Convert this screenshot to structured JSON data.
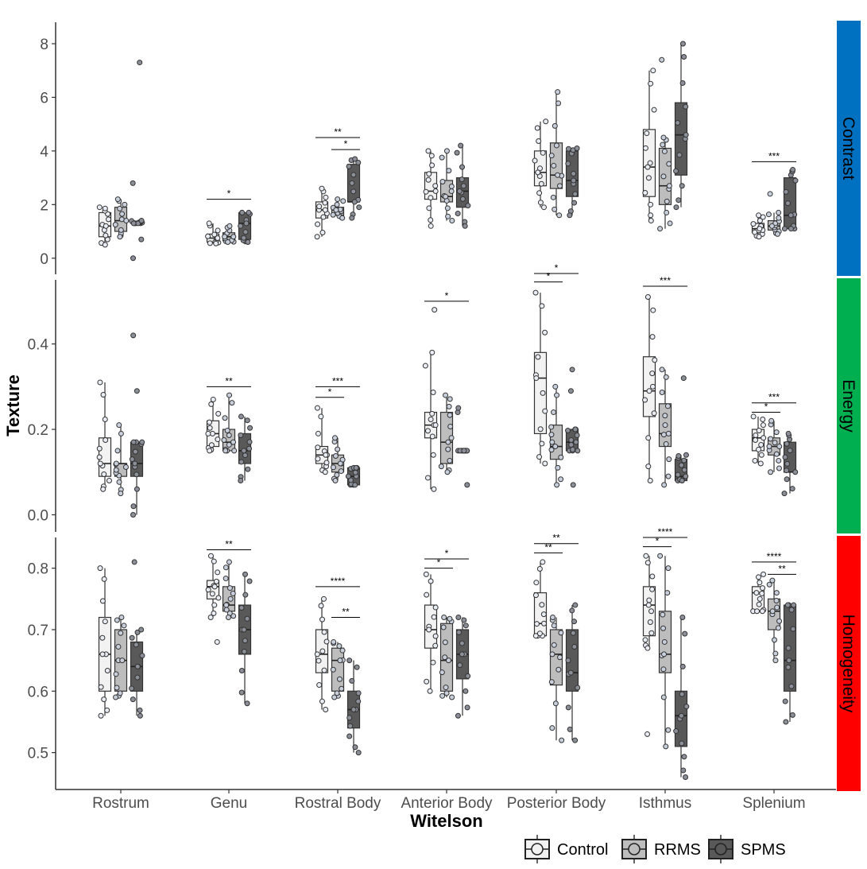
{
  "chart_data": {
    "type": "boxplot",
    "xlabel": "Witelson",
    "ylabel": "Texture",
    "categories": [
      "Rostrum",
      "Genu",
      "Rostral Body",
      "Anterior Body",
      "Posterior Body",
      "Isthmus",
      "Splenium"
    ],
    "legend": {
      "placement": "bottom-right",
      "items": [
        {
          "label": "Control",
          "color": "#f2f2f2"
        },
        {
          "label": "RRMS",
          "color": "#bdbdbd"
        },
        {
          "label": "SPMS",
          "color": "#595959"
        }
      ]
    },
    "panels": [
      {
        "name": "Contrast",
        "strip_color": "#0070c0",
        "ylim": [
          -0.6,
          8.8
        ],
        "ticks": [
          0,
          2,
          4,
          6,
          8
        ],
        "tick_labels": [
          "0",
          "2",
          "4",
          "6",
          "8"
        ],
        "boxes": [
          [
            [
              0.5,
              0.8,
              1.2,
              1.7,
              1.9
            ],
            [
              0.8,
              1.0,
              1.4,
              1.9,
              2.2
            ],
            [
              1.3,
              1.3,
              1.3,
              1.35,
              1.4
            ]
          ],
          [
            [
              0.55,
              0.6,
              0.75,
              0.9,
              1.3
            ],
            [
              0.6,
              0.65,
              0.8,
              0.95,
              1.2
            ],
            [
              0.6,
              0.7,
              1.3,
              1.7,
              1.7
            ]
          ],
          [
            [
              0.8,
              1.5,
              1.8,
              2.1,
              2.6
            ],
            [
              1.5,
              1.6,
              1.8,
              1.9,
              2.2
            ],
            [
              1.5,
              2.1,
              2.1,
              3.5,
              3.7
            ]
          ],
          [
            [
              1.2,
              2.2,
              2.5,
              3.2,
              4.0
            ],
            [
              1.4,
              2.1,
              2.3,
              2.9,
              4.0
            ],
            [
              1.2,
              1.9,
              2.5,
              3.0,
              4.2
            ]
          ],
          [
            [
              1.9,
              2.7,
              3.2,
              4.0,
              5.1
            ],
            [
              1.6,
              2.6,
              3.1,
              4.3,
              6.2
            ],
            [
              1.6,
              2.3,
              2.9,
              4.0,
              4.1
            ]
          ],
          [
            [
              1.4,
              2.3,
              3.4,
              4.8,
              7.0
            ],
            [
              1.1,
              2.0,
              2.7,
              4.1,
              4.5
            ],
            [
              1.9,
              3.1,
              4.6,
              5.8,
              8.0
            ]
          ],
          [
            [
              0.8,
              0.95,
              1.1,
              1.3,
              1.6
            ],
            [
              0.9,
              1.05,
              1.2,
              1.4,
              1.7
            ],
            [
              1.1,
              1.1,
              1.6,
              3.0,
              3.3
            ]
          ]
        ],
        "outliers": [
          [
            [],
            [],
            [
              7.3,
              2.8,
              0.7,
              0.0
            ]
          ],
          [
            [],
            [],
            []
          ],
          [
            [],
            [],
            []
          ],
          [
            [],
            [],
            []
          ],
          [
            [],
            [],
            []
          ],
          [
            [],
            [
              7.4
            ],
            []
          ],
          [
            [],
            [
              2.4
            ],
            []
          ]
        ],
        "significance": [
          {
            "category": "Genu",
            "from": "Control",
            "to": "SPMS",
            "label": "*",
            "y": 2.2
          },
          {
            "category": "Rostral Body",
            "from": "Control",
            "to": "SPMS",
            "label": "**",
            "y": 4.5
          },
          {
            "category": "Rostral Body",
            "from": "RRMS",
            "to": "SPMS",
            "label": "*",
            "y": 4.05
          },
          {
            "category": "Splenium",
            "from": "Control",
            "to": "SPMS",
            "label": "***",
            "y": 3.6
          }
        ]
      },
      {
        "name": "Energy",
        "strip_color": "#00b050",
        "ylim": [
          -0.04,
          0.55
        ],
        "ticks": [
          0.0,
          0.2,
          0.4
        ],
        "tick_labels": [
          "0.0",
          "0.2",
          "0.4"
        ],
        "boxes": [
          [
            [
              0.06,
              0.09,
              0.12,
              0.18,
              0.31
            ],
            [
              0.05,
              0.09,
              0.12,
              0.12,
              0.21
            ],
            [
              0.0,
              0.09,
              0.12,
              0.17,
              0.17
            ]
          ],
          [
            [
              0.15,
              0.16,
              0.19,
              0.22,
              0.27
            ],
            [
              0.15,
              0.15,
              0.17,
              0.2,
              0.28
            ],
            [
              0.08,
              0.12,
              0.15,
              0.19,
              0.23
            ]
          ],
          [
            [
              0.1,
              0.12,
              0.14,
              0.16,
              0.25
            ],
            [
              0.08,
              0.1,
              0.12,
              0.14,
              0.18
            ],
            [
              0.07,
              0.07,
              0.09,
              0.11,
              0.11
            ]
          ],
          [
            [
              0.06,
              0.18,
              0.21,
              0.24,
              0.38
            ],
            [
              0.1,
              0.12,
              0.17,
              0.24,
              0.28
            ],
            [
              0.15,
              0.15,
              0.15,
              0.15,
              0.15
            ]
          ],
          [
            [
              0.12,
              0.19,
              0.32,
              0.38,
              0.52
            ],
            [
              0.07,
              0.13,
              0.16,
              0.21,
              0.3
            ],
            [
              0.15,
              0.15,
              0.17,
              0.2,
              0.2
            ]
          ],
          [
            [
              0.08,
              0.23,
              0.29,
              0.37,
              0.51
            ],
            [
              0.07,
              0.16,
              0.19,
              0.26,
              0.34
            ],
            [
              0.08,
              0.08,
              0.09,
              0.13,
              0.14
            ]
          ],
          [
            [
              0.12,
              0.15,
              0.18,
              0.2,
              0.23
            ],
            [
              0.1,
              0.14,
              0.16,
              0.18,
              0.22
            ],
            [
              0.05,
              0.1,
              0.1,
              0.17,
              0.19
            ]
          ]
        ],
        "outliers": [
          [
            [],
            [],
            [
              0.42,
              0.29
            ]
          ],
          [
            [],
            [],
            []
          ],
          [
            [],
            [],
            []
          ],
          [
            [
              0.48
            ],
            [],
            [
              0.07,
              0.24,
              0.25
            ]
          ],
          [
            [],
            [],
            [
              0.07,
              0.29,
              0.34
            ]
          ],
          [
            [],
            [],
            [
              0.32
            ]
          ],
          [
            [],
            [],
            []
          ]
        ],
        "significance": [
          {
            "category": "Genu",
            "from": "Control",
            "to": "SPMS",
            "label": "**",
            "y": 0.3
          },
          {
            "category": "Rostral Body",
            "from": "Control",
            "to": "RRMS",
            "label": "*",
            "y": 0.275
          },
          {
            "category": "Rostral Body",
            "from": "Control",
            "to": "SPMS",
            "label": "***",
            "y": 0.3
          },
          {
            "category": "Anterior Body",
            "from": "Control",
            "to": "SPMS",
            "label": "*",
            "y": 0.5
          },
          {
            "category": "Posterior Body",
            "from": "Control",
            "to": "RRMS",
            "label": "*",
            "y": 0.545
          },
          {
            "category": "Posterior Body",
            "from": "Control",
            "to": "SPMS",
            "label": "*",
            "y": 0.565
          },
          {
            "category": "Isthmus",
            "from": "Control",
            "to": "SPMS",
            "label": "***",
            "y": 0.535
          },
          {
            "category": "Splenium",
            "from": "Control",
            "to": "RRMS",
            "label": "*",
            "y": 0.24
          },
          {
            "category": "Splenium",
            "from": "Control",
            "to": "SPMS",
            "label": "***",
            "y": 0.262
          }
        ]
      },
      {
        "name": "Homogeneity",
        "strip_color": "#ff0000",
        "ylim": [
          0.44,
          0.85
        ],
        "ticks": [
          0.5,
          0.6,
          0.7,
          0.8
        ],
        "tick_labels": [
          "0.5",
          "0.6",
          "0.7",
          "0.8"
        ],
        "boxes": [
          [
            [
              0.56,
              0.6,
              0.66,
              0.72,
              0.8
            ],
            [
              0.59,
              0.6,
              0.65,
              0.7,
              0.72
            ],
            [
              0.56,
              0.6,
              0.64,
              0.68,
              0.7
            ]
          ],
          [
            [
              0.72,
              0.75,
              0.77,
              0.78,
              0.82
            ],
            [
              0.72,
              0.73,
              0.74,
              0.77,
              0.81
            ],
            [
              0.58,
              0.66,
              0.7,
              0.74,
              0.79
            ]
          ],
          [
            [
              0.57,
              0.63,
              0.66,
              0.7,
              0.75
            ],
            [
              0.59,
              0.6,
              0.65,
              0.67,
              0.68
            ],
            [
              0.5,
              0.54,
              0.57,
              0.6,
              0.65
            ]
          ],
          [
            [
              0.6,
              0.67,
              0.7,
              0.74,
              0.79
            ],
            [
              0.59,
              0.6,
              0.65,
              0.71,
              0.72
            ],
            [
              0.56,
              0.62,
              0.66,
              0.7,
              0.72
            ]
          ],
          [
            [
              0.69,
              0.69,
              0.71,
              0.76,
              0.81
            ],
            [
              0.52,
              0.61,
              0.66,
              0.7,
              0.72
            ],
            [
              0.52,
              0.6,
              0.63,
              0.7,
              0.74
            ]
          ],
          [
            [
              0.67,
              0.69,
              0.74,
              0.77,
              0.82
            ],
            [
              0.51,
              0.63,
              0.66,
              0.73,
              0.82
            ],
            [
              0.46,
              0.51,
              0.56,
              0.6,
              0.72
            ]
          ],
          [
            [
              0.73,
              0.73,
              0.76,
              0.77,
              0.79
            ],
            [
              0.65,
              0.7,
              0.73,
              0.75,
              0.78
            ],
            [
              0.55,
              0.6,
              0.65,
              0.74,
              0.74
            ]
          ]
        ],
        "outliers": [
          [
            [],
            [],
            [
              0.81
            ]
          ],
          [
            [
              0.68
            ],
            [],
            []
          ],
          [
            [],
            [],
            []
          ],
          [
            [],
            [],
            []
          ],
          [
            [],
            [],
            []
          ],
          [
            [
              0.53
            ],
            [],
            []
          ],
          [
            [],
            [],
            []
          ]
        ],
        "significance": [
          {
            "category": "Genu",
            "from": "Control",
            "to": "SPMS",
            "label": "**",
            "y": 0.83
          },
          {
            "category": "Rostral Body",
            "from": "Control",
            "to": "SPMS",
            "label": "****",
            "y": 0.77
          },
          {
            "category": "Rostral Body",
            "from": "RRMS",
            "to": "SPMS",
            "label": "**",
            "y": 0.72
          },
          {
            "category": "Anterior Body",
            "from": "Control",
            "to": "RRMS",
            "label": "*",
            "y": 0.8
          },
          {
            "category": "Anterior Body",
            "from": "Control",
            "to": "SPMS",
            "label": "*",
            "y": 0.815
          },
          {
            "category": "Posterior Body",
            "from": "Control",
            "to": "RRMS",
            "label": "**",
            "y": 0.825
          },
          {
            "category": "Posterior Body",
            "from": "Control",
            "to": "SPMS",
            "label": "**",
            "y": 0.84
          },
          {
            "category": "Isthmus",
            "from": "Control",
            "to": "RRMS",
            "label": "*",
            "y": 0.835
          },
          {
            "category": "Isthmus",
            "from": "Control",
            "to": "SPMS",
            "label": "****",
            "y": 0.85
          },
          {
            "category": "Splenium",
            "from": "Control",
            "to": "SPMS",
            "label": "****",
            "y": 0.81
          },
          {
            "category": "Splenium",
            "from": "RRMS",
            "to": "SPMS",
            "label": "**",
            "y": 0.79
          }
        ]
      }
    ]
  }
}
